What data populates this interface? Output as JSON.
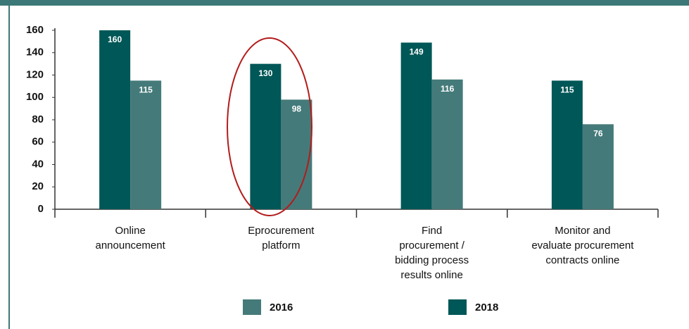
{
  "chart_data": {
    "type": "bar",
    "categories": [
      "Online\nannouncement",
      "Eprocurement\nplatform",
      "Find\nprocurement /\nbidding process\nresults online",
      "Monitor and\nevaluate procurement\ncontracts online"
    ],
    "series": [
      {
        "name": "2018",
        "color": "#005757",
        "values": [
          160,
          130,
          149,
          115
        ]
      },
      {
        "name": "2016",
        "color": "#457a7a",
        "values": [
          115,
          98,
          116,
          76
        ]
      }
    ],
    "ylim": [
      0,
      160
    ],
    "yticks": [
      0,
      20,
      40,
      60,
      80,
      100,
      120,
      140,
      160
    ]
  }
}
